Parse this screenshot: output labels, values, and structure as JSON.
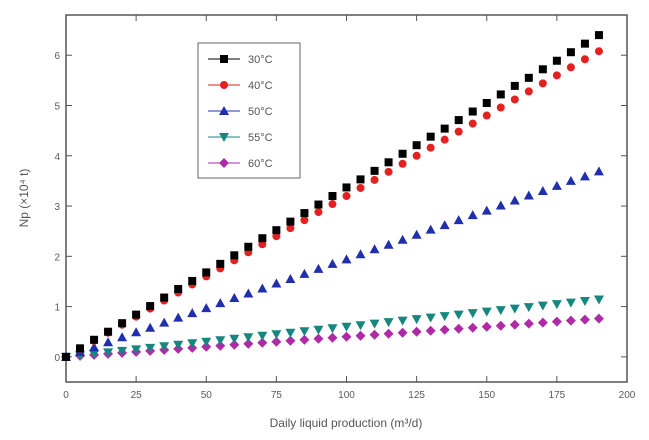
{
  "chart_data": {
    "type": "scatter",
    "xlabel": "Daily liquid production (m³/d)",
    "ylabel": "Np (×10⁴ t)",
    "xlim": [
      0,
      200
    ],
    "ylim": [
      -0.5,
      6.8
    ],
    "x_ticks": [
      0,
      25,
      50,
      75,
      100,
      125,
      150,
      175,
      200
    ],
    "y_ticks": [
      0,
      1,
      2,
      3,
      4,
      5,
      6
    ],
    "x_tick_labels": [
      "0",
      "25",
      "50",
      "75",
      "100",
      "125",
      "150",
      "175",
      "200"
    ],
    "y_tick_labels": [
      "0",
      "1",
      "2",
      "3",
      "4",
      "5",
      "6"
    ],
    "grid": false,
    "legend_placement": "top-left",
    "x": [
      0,
      5,
      10,
      15,
      20,
      25,
      30,
      35,
      40,
      45,
      50,
      55,
      60,
      65,
      70,
      75,
      80,
      85,
      90,
      95,
      100,
      105,
      110,
      115,
      120,
      125,
      130,
      135,
      140,
      145,
      150,
      155,
      160,
      165,
      170,
      175,
      180,
      185,
      190
    ],
    "series": [
      {
        "name": "30°C",
        "color": "#000000",
        "marker": "square",
        "values": [
          0.0,
          0.17,
          0.34,
          0.5,
          0.67,
          0.84,
          1.01,
          1.18,
          1.35,
          1.51,
          1.68,
          1.85,
          2.02,
          2.19,
          2.36,
          2.52,
          2.69,
          2.86,
          3.03,
          3.2,
          3.37,
          3.53,
          3.7,
          3.87,
          4.04,
          4.21,
          4.38,
          4.54,
          4.71,
          4.88,
          5.05,
          5.22,
          5.39,
          5.55,
          5.72,
          5.89,
          6.06,
          6.23,
          6.4
        ]
      },
      {
        "name": "40°C",
        "color": "#e52020",
        "marker": "circle",
        "values": [
          0.0,
          0.16,
          0.32,
          0.48,
          0.64,
          0.8,
          0.96,
          1.12,
          1.28,
          1.44,
          1.6,
          1.76,
          1.92,
          2.08,
          2.24,
          2.4,
          2.56,
          2.72,
          2.88,
          3.04,
          3.2,
          3.36,
          3.52,
          3.68,
          3.84,
          4.0,
          4.16,
          4.32,
          4.48,
          4.64,
          4.8,
          4.96,
          5.12,
          5.28,
          5.44,
          5.6,
          5.76,
          5.92,
          6.08
        ]
      },
      {
        "name": "50°C",
        "color": "#1f2fae",
        "marker": "triangle",
        "values": [
          0.0,
          0.1,
          0.19,
          0.29,
          0.39,
          0.49,
          0.58,
          0.68,
          0.78,
          0.87,
          0.97,
          1.07,
          1.17,
          1.26,
          1.36,
          1.46,
          1.55,
          1.65,
          1.75,
          1.85,
          1.94,
          2.04,
          2.14,
          2.23,
          2.33,
          2.43,
          2.53,
          2.62,
          2.72,
          2.82,
          2.91,
          3.01,
          3.11,
          3.21,
          3.3,
          3.4,
          3.5,
          3.59,
          3.69
        ]
      },
      {
        "name": "55°C",
        "color": "#16877e",
        "marker": "triangle-down",
        "values": [
          0.0,
          0.03,
          0.06,
          0.09,
          0.12,
          0.15,
          0.18,
          0.21,
          0.24,
          0.27,
          0.3,
          0.33,
          0.36,
          0.39,
          0.42,
          0.45,
          0.48,
          0.51,
          0.54,
          0.57,
          0.6,
          0.63,
          0.66,
          0.69,
          0.72,
          0.75,
          0.78,
          0.81,
          0.84,
          0.87,
          0.9,
          0.93,
          0.96,
          0.99,
          1.02,
          1.05,
          1.08,
          1.11,
          1.14
        ]
      },
      {
        "name": "60°C",
        "color": "#b02aa8",
        "marker": "diamond",
        "values": [
          0.0,
          0.02,
          0.04,
          0.06,
          0.08,
          0.1,
          0.12,
          0.14,
          0.16,
          0.18,
          0.2,
          0.22,
          0.24,
          0.26,
          0.28,
          0.3,
          0.32,
          0.34,
          0.36,
          0.38,
          0.4,
          0.42,
          0.44,
          0.46,
          0.48,
          0.5,
          0.52,
          0.54,
          0.56,
          0.58,
          0.6,
          0.62,
          0.64,
          0.66,
          0.68,
          0.7,
          0.72,
          0.74,
          0.76
        ]
      }
    ]
  }
}
